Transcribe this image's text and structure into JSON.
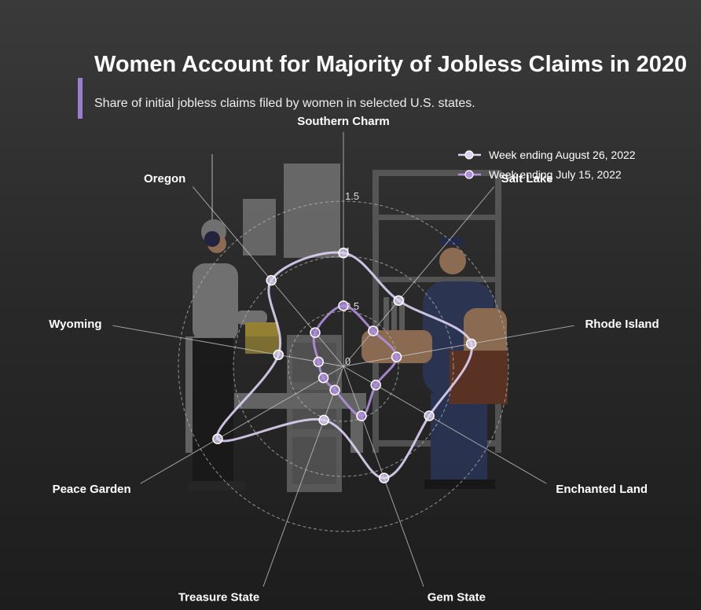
{
  "header": {
    "title": "Women Account for Majority of Jobless Claims in 2020",
    "subtitle": "Share of initial jobless claims filed by women in selected U.S. states."
  },
  "colors": {
    "accent": "#9a7fd1",
    "series_1": "#ddd3f3",
    "series_2": "#b08fde",
    "grid": "#bbbbbb"
  },
  "background_illustration": "two office workers shaking hands beside filing cabinets and shelves",
  "chart_data": {
    "type": "radar",
    "categories": [
      "Southern Charm",
      "Salt Lake",
      "Rhode Island",
      "Enchanted Land",
      "Gem State",
      "Treasure State",
      "Peace Garden",
      "Wyoming",
      "Oregon"
    ],
    "rlim": [
      0,
      1.5
    ],
    "ticks": [
      0,
      0.5,
      1,
      1.5
    ],
    "tick_labels": [
      "0",
      "0.5",
      "1",
      "1.5"
    ],
    "grid": true,
    "legend_position": "top-right",
    "series": [
      {
        "name": "Week ending August 26, 2022",
        "values": [
          1.03,
          0.78,
          1.18,
          0.9,
          1.08,
          0.52,
          1.32,
          0.6,
          1.02
        ]
      },
      {
        "name": "Week ending July 15, 2022",
        "values": [
          0.55,
          0.42,
          0.49,
          0.34,
          0.48,
          0.23,
          0.21,
          0.23,
          0.4
        ]
      }
    ]
  }
}
